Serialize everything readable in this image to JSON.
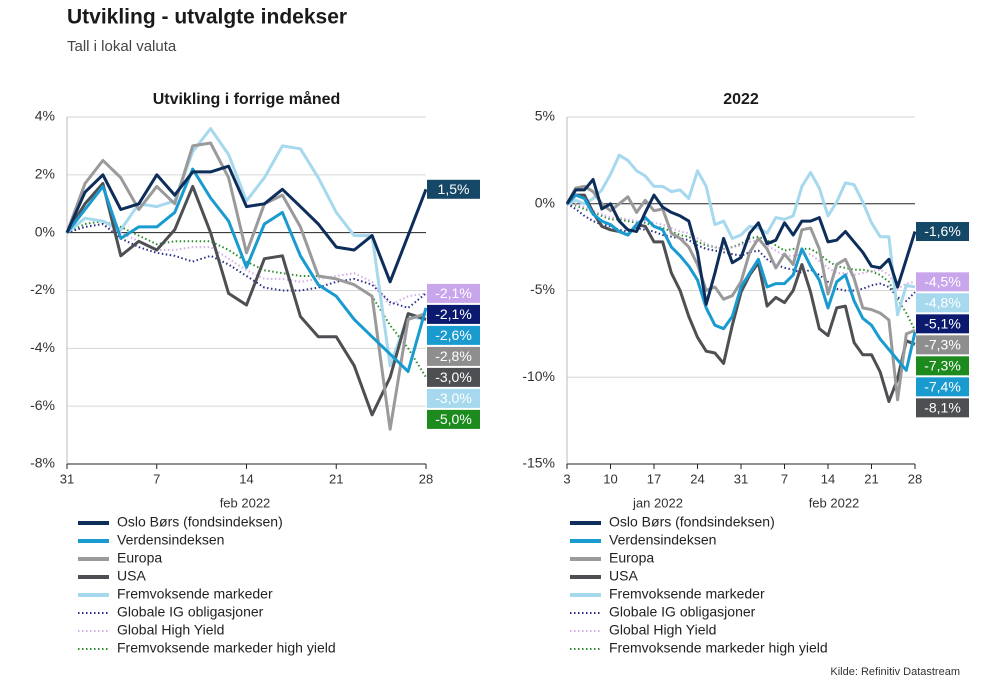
{
  "header": {
    "title": "Utvikling - utvalgte indekser",
    "subtitle": "Tall i lokal valuta",
    "source": "Kilde: Refinitiv Datastream"
  },
  "chart_data": [
    {
      "type": "line",
      "title": "Utvikling i forrige måned",
      "categories": [
        "31",
        null,
        null,
        null,
        null,
        "7",
        null,
        null,
        null,
        null,
        "14",
        null,
        null,
        null,
        null,
        "21",
        null,
        null,
        null,
        null,
        "28"
      ],
      "xgroup_labels": [
        "feb 2022"
      ],
      "ylim": [
        -8,
        4
      ],
      "yticks": [
        {
          "value": 4,
          "label": "4%"
        },
        {
          "value": 2,
          "label": "2%"
        },
        {
          "value": 0,
          "label": "0%"
        },
        {
          "value": -2,
          "label": "-2%"
        },
        {
          "value": -4,
          "label": "-4%"
        },
        {
          "value": -6,
          "label": "-6%"
        },
        {
          "value": -8,
          "label": "-8%"
        }
      ],
      "grid": true,
      "series": [
        {
          "name": "Oslo Børs (fondsindeksen)",
          "color": "#0d2d5a",
          "label_color": "#154766",
          "dash": false,
          "last_label": "1,5%",
          "values": [
            0,
            1.4,
            2.0,
            0.8,
            1.0,
            2.0,
            1.3,
            2.1,
            2.1,
            2.3,
            0.9,
            1.0,
            1.5,
            0.9,
            0.3,
            -0.5,
            -0.6,
            -0.1,
            -1.7,
            -0.1,
            1.5
          ]
        },
        {
          "name": "Verdensindeksen",
          "color": "#1a9bd0",
          "label_color": "#1a9bd0",
          "dash": false,
          "last_label": "-2,6%",
          "values": [
            0,
            0.8,
            1.6,
            -0.2,
            0.2,
            0.2,
            0.7,
            2.2,
            1.2,
            0.4,
            -1.2,
            0.3,
            0.7,
            -0.8,
            -1.8,
            -2.2,
            -3.0,
            -3.6,
            -4.2,
            -4.8,
            -2.6
          ]
        },
        {
          "name": "Europa",
          "color": "#9a9a9a",
          "label_color": "#8e8e8e",
          "dash": false,
          "last_label": "-2,8%",
          "values": [
            0,
            1.7,
            2.5,
            1.9,
            0.8,
            1.6,
            1.0,
            3.0,
            3.1,
            1.9,
            -0.7,
            1.0,
            1.3,
            0.2,
            -1.5,
            -1.6,
            -1.8,
            -2.2,
            -6.8,
            -3.0,
            -2.8
          ]
        },
        {
          "name": "USA",
          "color": "#4d4f53",
          "label_color": "#4d4f53",
          "dash": false,
          "last_label": "-3,0%",
          "values": [
            0,
            1.0,
            1.7,
            -0.8,
            -0.3,
            -0.6,
            0.1,
            1.6,
            0.0,
            -2.1,
            -2.5,
            -0.9,
            -0.8,
            -2.9,
            -3.6,
            -3.6,
            -4.6,
            -6.3,
            -5.0,
            -2.8,
            -3.0
          ]
        },
        {
          "name": "Fremvoksende markeder",
          "color": "#a6d8ee",
          "label_color": "#a6d8ee",
          "dash": false,
          "last_label": "-3,0%",
          "values": [
            0,
            0.5,
            0.4,
            0.1,
            1.0,
            0.9,
            1.1,
            2.8,
            3.6,
            2.7,
            1.1,
            1.9,
            3.0,
            2.9,
            1.9,
            0.7,
            -0.1,
            -0.1,
            -4.6,
            -2.9,
            -3.0
          ]
        },
        {
          "name": "Globale IG obligasjoner",
          "color": "#2b2f8a",
          "label_color": "#0b1a6e",
          "dash": true,
          "last_label": "-2,1%",
          "values": [
            0,
            0.2,
            0.3,
            -0.2,
            -0.5,
            -0.7,
            -0.8,
            -1.0,
            -0.8,
            -1.1,
            -1.5,
            -1.9,
            -2.0,
            -2.0,
            -1.9,
            -1.7,
            -1.6,
            -1.8,
            -2.4,
            -2.6,
            -2.1
          ]
        },
        {
          "name": "Global High Yield",
          "color": "#d4aee6",
          "label_color": "#c9a6ec",
          "dash": true,
          "last_label": "-2,1%",
          "values": [
            0,
            0.2,
            0.3,
            0.0,
            -0.3,
            -0.6,
            -0.6,
            -0.5,
            -0.5,
            -0.9,
            -1.3,
            -1.6,
            -1.6,
            -1.7,
            -1.6,
            -1.5,
            -1.4,
            -1.7,
            -2.5,
            -2.2,
            -2.1
          ]
        },
        {
          "name": "Fremvoksende markeder high yield",
          "color": "#2e8b2e",
          "label_color": "#1c8a1c",
          "dash": true,
          "last_label": "-5,0%",
          "values": [
            0,
            0.3,
            0.4,
            0.2,
            -0.1,
            -0.4,
            -0.3,
            -0.3,
            -0.3,
            -0.6,
            -1.0,
            -1.3,
            -1.4,
            -1.5,
            -1.5,
            -1.6,
            -1.8,
            -2.2,
            -3.2,
            -4.0,
            -5.0
          ]
        }
      ]
    },
    {
      "type": "line",
      "title": "2022",
      "categories": [
        "3",
        null,
        null,
        null,
        null,
        "10",
        null,
        null,
        null,
        null,
        "17",
        null,
        null,
        null,
        null,
        "24",
        null,
        null,
        null,
        null,
        "31",
        null,
        null,
        null,
        null,
        "7",
        null,
        null,
        null,
        null,
        "14",
        null,
        null,
        null,
        null,
        "21",
        null,
        null,
        null,
        null,
        "28"
      ],
      "xgroup_labels": [
        "jan 2022",
        "feb 2022"
      ],
      "ylim": [
        -15,
        5
      ],
      "yticks": [
        {
          "value": 5,
          "label": "5%"
        },
        {
          "value": 0,
          "label": "0%"
        },
        {
          "value": -5,
          "label": "-5%"
        },
        {
          "value": -10,
          "label": "-10%"
        },
        {
          "value": -15,
          "label": "-15%"
        }
      ],
      "grid": true,
      "series": [
        {
          "name": "Oslo Børs (fondsindeksen)",
          "color": "#0d2d5a",
          "label_color": "#154766",
          "dash": false,
          "last_label": "-1,6%",
          "values": [
            0,
            0.8,
            0.8,
            1.4,
            -0.3,
            0.0,
            -1.0,
            -1.5,
            -1.6,
            -0.5,
            0.5,
            -0.2,
            -0.5,
            -0.7,
            -1.0,
            -2.8,
            -5.8,
            -4.0,
            -2.0,
            -3.4,
            -3.1,
            -1.7,
            -1.1,
            -2.3,
            -2.1,
            -1.1,
            -1.8,
            -1.0,
            -1.0,
            -0.8,
            -2.2,
            -2.1,
            -1.6,
            -2.2,
            -2.8,
            -3.6,
            -3.7,
            -3.2,
            -4.8,
            -3.2,
            -1.6
          ]
        },
        {
          "name": "Verdensindeksen",
          "color": "#1a9bd0",
          "label_color": "#1a9bd0",
          "dash": false,
          "last_label": "-7,4%",
          "values": [
            0,
            0.5,
            0.3,
            -0.6,
            -1.0,
            -1.2,
            -1.6,
            -1.8,
            -1.2,
            -0.8,
            -1.3,
            -1.5,
            -2.5,
            -3.0,
            -3.6,
            -4.4,
            -6.0,
            -7.0,
            -7.2,
            -6.5,
            -4.8,
            -4.0,
            -3.2,
            -4.8,
            -4.6,
            -4.6,
            -4.1,
            -2.6,
            -3.6,
            -4.4,
            -6.0,
            -4.5,
            -4.1,
            -5.6,
            -6.6,
            -7.0,
            -7.8,
            -8.4,
            -9.0,
            -9.6,
            -7.4
          ]
        },
        {
          "name": "Europa",
          "color": "#9a9a9a",
          "label_color": "#8e8e8e",
          "dash": false,
          "last_label": "-7,3%",
          "values": [
            0,
            0.9,
            1.0,
            0.7,
            0.0,
            -0.4,
            0.0,
            0.4,
            -0.5,
            0.2,
            -0.4,
            -0.3,
            -1.7,
            -2.0,
            -2.5,
            -3.5,
            -5.0,
            -4.8,
            -5.5,
            -5.3,
            -4.5,
            -2.8,
            -2.0,
            -2.6,
            -3.7,
            -2.9,
            -3.5,
            -1.5,
            -1.4,
            -2.6,
            -5.2,
            -3.5,
            -3.2,
            -4.3,
            -6.0,
            -6.1,
            -6.3,
            -6.7,
            -11.3,
            -7.5,
            -7.3
          ]
        },
        {
          "name": "USA",
          "color": "#4d4f53",
          "label_color": "#4d4f53",
          "dash": false,
          "last_label": "-8,1%",
          "values": [
            0,
            0.5,
            0.5,
            -0.5,
            -1.3,
            -1.5,
            -1.6,
            -1.8,
            -1.2,
            -1.3,
            -2.2,
            -2.2,
            -4.0,
            -5.0,
            -6.5,
            -7.7,
            -8.5,
            -8.6,
            -9.2,
            -7.0,
            -5.1,
            -4.1,
            -3.4,
            -5.9,
            -5.4,
            -5.7,
            -5.0,
            -3.5,
            -5.1,
            -7.2,
            -7.6,
            -6.0,
            -5.9,
            -8.0,
            -8.7,
            -8.7,
            -9.7,
            -11.4,
            -10.1,
            -7.9,
            -8.1
          ]
        },
        {
          "name": "Fremvoksende markeder",
          "color": "#a6d8ee",
          "label_color": "#a6d8ee",
          "dash": false,
          "last_label": "-4,8%",
          "values": [
            0,
            0.2,
            0.0,
            0.3,
            0.8,
            1.7,
            2.8,
            2.5,
            1.9,
            1.6,
            1.0,
            1.0,
            0.7,
            0.8,
            0.3,
            1.9,
            1.0,
            -1.2,
            -1.0,
            -2.0,
            -1.8,
            -1.3,
            -1.4,
            -1.7,
            -0.8,
            -0.9,
            -0.7,
            1.0,
            1.8,
            0.9,
            -0.7,
            0.1,
            1.2,
            1.1,
            0.1,
            -1.1,
            -1.9,
            -1.9,
            -6.4,
            -4.7,
            -4.8
          ]
        },
        {
          "name": "Globale IG obligasjoner",
          "color": "#2b2f8a",
          "label_color": "#0b1a6e",
          "dash": true,
          "last_label": "-5,1%",
          "values": [
            0,
            -0.3,
            -0.7,
            -1.0,
            -1.2,
            -1.3,
            -1.5,
            -1.6,
            -1.4,
            -1.5,
            -1.6,
            -1.8,
            -1.9,
            -2.0,
            -2.1,
            -2.4,
            -2.6,
            -2.7,
            -2.8,
            -2.9,
            -3.0,
            -2.8,
            -2.7,
            -3.2,
            -3.5,
            -3.7,
            -3.8,
            -4.0,
            -3.8,
            -4.1,
            -4.5,
            -4.9,
            -5.0,
            -5.0,
            -4.9,
            -4.7,
            -4.6,
            -4.8,
            -5.4,
            -5.6,
            -5.1
          ]
        },
        {
          "name": "Global High Yield",
          "color": "#d4aee6",
          "label_color": "#c9a6ec",
          "dash": true,
          "last_label": "-4,5%",
          "values": [
            0,
            0.0,
            -0.2,
            -0.4,
            -0.6,
            -0.8,
            -0.8,
            -0.9,
            -1.0,
            -1.0,
            -1.1,
            -1.2,
            -1.4,
            -1.6,
            -1.7,
            -2.0,
            -2.3,
            -2.5,
            -2.6,
            -2.5,
            -2.4,
            -2.2,
            -2.1,
            -2.4,
            -2.7,
            -3.0,
            -3.0,
            -2.9,
            -2.9,
            -3.3,
            -3.7,
            -4.0,
            -4.0,
            -4.1,
            -4.0,
            -3.9,
            -3.8,
            -4.1,
            -4.9,
            -4.6,
            -4.5
          ]
        },
        {
          "name": "Fremvoksende markeder high yield",
          "color": "#2e8b2e",
          "label_color": "#1c8a1c",
          "dash": true,
          "last_label": "-7,3%",
          "values": [
            0,
            -0.1,
            -0.3,
            -0.5,
            -0.7,
            -0.9,
            -0.9,
            -1.0,
            -1.1,
            -1.1,
            -1.3,
            -1.4,
            -1.6,
            -1.8,
            -1.9,
            -2.2,
            -2.4,
            -2.5,
            -2.6,
            -2.5,
            -2.3,
            -2.0,
            -1.9,
            -2.1,
            -2.4,
            -2.7,
            -2.6,
            -2.6,
            -2.6,
            -2.9,
            -3.3,
            -3.6,
            -3.7,
            -3.8,
            -3.8,
            -3.9,
            -4.1,
            -4.5,
            -5.5,
            -6.3,
            -7.3
          ]
        }
      ]
    }
  ]
}
